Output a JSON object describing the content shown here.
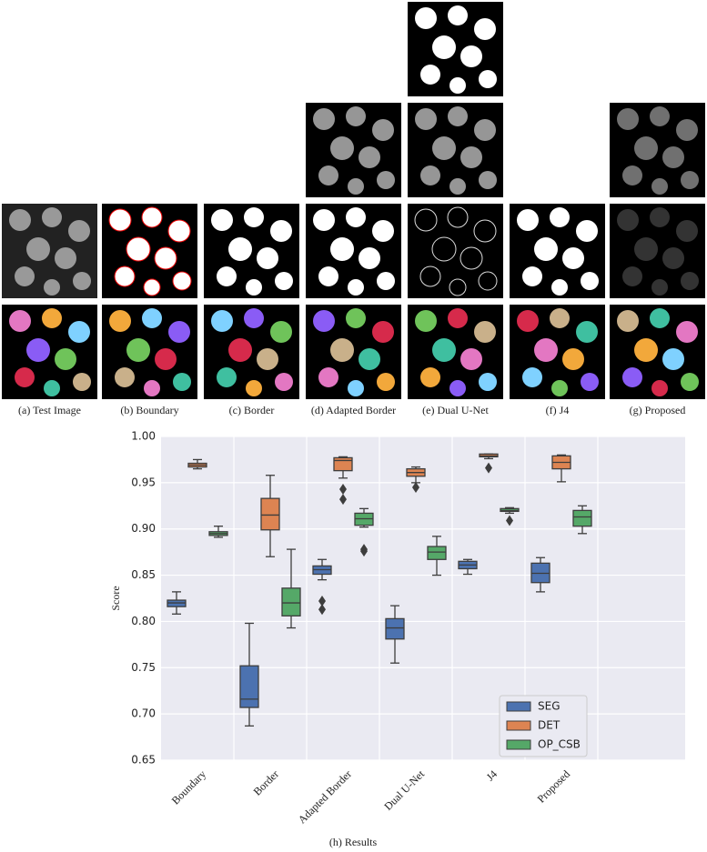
{
  "figure": {
    "captions": [
      "(a) Test Image",
      "(b) Boundary",
      "(c) Border",
      "(d) Adapted Border",
      "(e) Dual U-Net",
      "(f) J4",
      "(g) Proposed"
    ]
  },
  "chart_data": {
    "type": "box",
    "ylabel": "Score",
    "xlabel": "(h) Results",
    "categories": [
      "Boundary",
      "Border",
      "Adapted Border",
      "Dual U-Net",
      "J4",
      "Proposed"
    ],
    "ylim": [
      0.65,
      1.0
    ],
    "yticks": [
      0.65,
      {
        "value": 0.7,
        "label": "0.70"
      },
      0.75,
      {
        "value": 0.8,
        "label": "0.80"
      },
      0.85,
      {
        "value": 0.9,
        "label": "0.90"
      },
      0.95,
      {
        "value": 1.0,
        "label": "1.00"
      }
    ],
    "grid": true,
    "legend": "lower right",
    "series": [
      {
        "name": "SEG",
        "color": "#4c72b0",
        "boxes": [
          {
            "low": 0.808,
            "q1": 0.816,
            "median": 0.82,
            "q3": 0.823,
            "high": 0.832,
            "outliers": []
          },
          {
            "low": 0.687,
            "q1": 0.707,
            "median": 0.716,
            "q3": 0.752,
            "high": 0.798,
            "outliers": []
          },
          {
            "low": 0.845,
            "q1": 0.851,
            "median": 0.856,
            "q3": 0.86,
            "high": 0.867,
            "outliers": [
              0.822,
              0.813
            ]
          },
          {
            "low": 0.755,
            "q1": 0.781,
            "median": 0.793,
            "q3": 0.803,
            "high": 0.817,
            "outliers": []
          },
          {
            "low": 0.851,
            "q1": 0.857,
            "median": 0.861,
            "q3": 0.865,
            "high": 0.867,
            "outliers": []
          },
          {
            "low": 0.832,
            "q1": 0.842,
            "median": 0.852,
            "q3": 0.863,
            "high": 0.869,
            "outliers": []
          }
        ]
      },
      {
        "name": "DET",
        "color": "#dd8452",
        "boxes": [
          {
            "low": 0.965,
            "q1": 0.967,
            "median": 0.969,
            "q3": 0.971,
            "high": 0.975,
            "outliers": []
          },
          {
            "low": 0.87,
            "q1": 0.899,
            "median": 0.915,
            "q3": 0.933,
            "high": 0.958,
            "outliers": []
          },
          {
            "low": 0.955,
            "q1": 0.963,
            "median": 0.974,
            "q3": 0.977,
            "high": 0.978,
            "outliers": [
              0.943,
              0.932
            ]
          },
          {
            "low": 0.95,
            "q1": 0.957,
            "median": 0.961,
            "q3": 0.965,
            "high": 0.967,
            "outliers": [
              0.945
            ]
          },
          {
            "low": 0.976,
            "q1": 0.978,
            "median": 0.979,
            "q3": 0.981,
            "high": 0.981,
            "outliers": [
              0.966
            ]
          },
          {
            "low": 0.951,
            "q1": 0.965,
            "median": 0.972,
            "q3": 0.979,
            "high": 0.98,
            "outliers": []
          }
        ]
      },
      {
        "name": "OP_CSB",
        "color": "#55a868",
        "boxes": [
          {
            "low": 0.891,
            "q1": 0.893,
            "median": 0.895,
            "q3": 0.897,
            "high": 0.903,
            "outliers": []
          },
          {
            "low": 0.793,
            "q1": 0.806,
            "median": 0.82,
            "q3": 0.836,
            "high": 0.878,
            "outliers": []
          },
          {
            "low": 0.902,
            "q1": 0.904,
            "median": 0.911,
            "q3": 0.917,
            "high": 0.922,
            "outliers": [
              0.878,
              0.876
            ]
          },
          {
            "low": 0.85,
            "q1": 0.867,
            "median": 0.875,
            "q3": 0.881,
            "high": 0.892,
            "outliers": []
          },
          {
            "low": 0.917,
            "q1": 0.919,
            "median": 0.92,
            "q3": 0.922,
            "high": 0.923,
            "outliers": [
              0.909
            ]
          },
          {
            "low": 0.895,
            "q1": 0.903,
            "median": 0.913,
            "q3": 0.92,
            "high": 0.925,
            "outliers": []
          }
        ]
      }
    ]
  }
}
